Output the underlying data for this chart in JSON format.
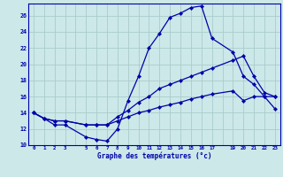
{
  "title": "Graphe des températures (°c)",
  "bg_color": "#cce8e8",
  "grid_color": "#aacccc",
  "line_color": "#0000aa",
  "spine_color": "#0000aa",
  "x_labels": [
    "0",
    "1",
    "2",
    "3",
    "",
    "5",
    "6",
    "7",
    "8",
    "9",
    "10",
    "11",
    "12",
    "13",
    "14",
    "15",
    "16",
    "17",
    "",
    "19",
    "20",
    "21",
    "22",
    "23"
  ],
  "x_ticks": [
    0,
    1,
    2,
    3,
    4,
    5,
    6,
    7,
    8,
    9,
    10,
    11,
    12,
    13,
    14,
    15,
    16,
    17,
    18,
    19,
    20,
    21,
    22,
    23
  ],
  "ylim": [
    10,
    27.5
  ],
  "yticks": [
    10,
    12,
    14,
    16,
    18,
    20,
    22,
    24,
    26
  ],
  "series1_x": [
    0,
    1,
    2,
    3,
    5,
    6,
    7,
    8,
    9,
    10,
    11,
    12,
    13,
    14,
    15,
    16,
    17,
    19,
    20,
    21,
    22,
    23
  ],
  "series1_y": [
    14.0,
    13.3,
    12.5,
    12.5,
    11.0,
    10.7,
    10.5,
    12.0,
    15.5,
    18.5,
    22.0,
    23.8,
    25.8,
    26.3,
    27.0,
    27.2,
    23.2,
    21.5,
    18.5,
    17.5,
    16.0,
    14.5
  ],
  "series2_x": [
    0,
    1,
    2,
    3,
    5,
    6,
    7,
    8,
    9,
    10,
    11,
    12,
    13,
    14,
    15,
    16,
    17,
    19,
    20,
    21,
    22,
    23
  ],
  "series2_y": [
    14.0,
    13.3,
    13.0,
    13.0,
    12.5,
    12.5,
    12.5,
    13.5,
    14.3,
    15.3,
    16.0,
    17.0,
    17.5,
    18.0,
    18.5,
    19.0,
    19.5,
    20.5,
    21.0,
    18.5,
    16.5,
    16.0
  ],
  "series3_x": [
    0,
    1,
    2,
    3,
    5,
    6,
    7,
    8,
    9,
    10,
    11,
    12,
    13,
    14,
    15,
    16,
    17,
    19,
    20,
    21,
    22,
    23
  ],
  "series3_y": [
    14.0,
    13.3,
    13.0,
    13.0,
    12.5,
    12.5,
    12.5,
    13.0,
    13.5,
    14.0,
    14.3,
    14.7,
    15.0,
    15.3,
    15.7,
    16.0,
    16.3,
    16.7,
    15.5,
    16.0,
    16.0,
    16.0
  ]
}
